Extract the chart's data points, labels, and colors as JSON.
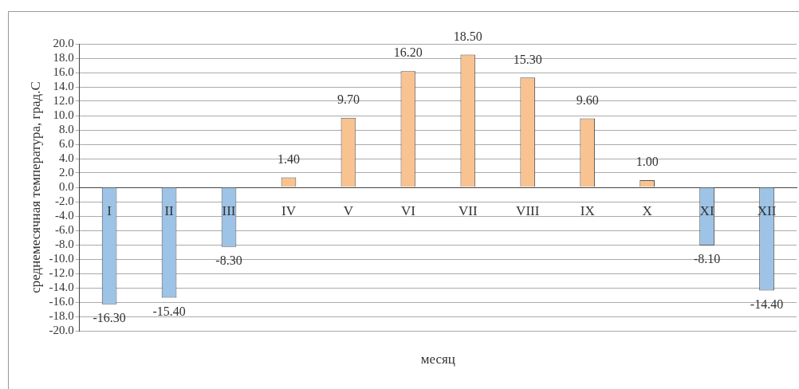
{
  "chart_data": {
    "type": "bar",
    "xlabel": "месяц",
    "ylabel": "среднемесячная температура, град.С",
    "categories": [
      "I",
      "II",
      "III",
      "IV",
      "V",
      "VI",
      "VII",
      "VIII",
      "IX",
      "X",
      "XI",
      "XII"
    ],
    "values": [
      -16.3,
      -15.4,
      -8.3,
      1.4,
      9.7,
      16.2,
      18.5,
      15.3,
      9.6,
      1.0,
      -8.1,
      -14.4
    ],
    "value_labels": [
      "-16.30",
      "-15.40",
      "-8.30",
      "1.40",
      "9.70",
      "16.20",
      "18.50",
      "15.30",
      "9.60",
      "1.00",
      "-8.10",
      "-14.40"
    ],
    "colors": [
      "#9dc3e6",
      "#9dc3e6",
      "#9dc3e6",
      "#f8c291",
      "#f8c291",
      "#f8c291",
      "#f8c291",
      "#f8c291",
      "#f8c291",
      "#f8c291",
      "#9dc3e6",
      "#9dc3e6"
    ],
    "ylim": [
      -20,
      20
    ],
    "yticks": [
      {
        "value": -20,
        "label": "-20.0"
      },
      {
        "value": -18,
        "label": "-18.0"
      },
      {
        "value": -16,
        "label": "-16.0"
      },
      {
        "value": -14,
        "label": "-14.0"
      },
      {
        "value": -12,
        "label": "-12.0"
      },
      {
        "value": -10,
        "label": "-10.0"
      },
      {
        "value": -8,
        "label": "-8.0"
      },
      {
        "value": -6,
        "label": "-6.0"
      },
      {
        "value": -4,
        "label": "-4.0"
      },
      {
        "value": -2,
        "label": "-2.0"
      },
      {
        "value": 0,
        "label": "0.0"
      },
      {
        "value": 2,
        "label": "2.0"
      },
      {
        "value": 4,
        "label": "4.0"
      },
      {
        "value": 6,
        "label": "6.0"
      },
      {
        "value": 8,
        "label": "8.0"
      },
      {
        "value": 10,
        "label": "10.0"
      },
      {
        "value": 12,
        "label": "12.0"
      },
      {
        "value": 14,
        "label": "14.0"
      },
      {
        "value": 16,
        "label": "16.0"
      },
      {
        "value": 18,
        "label": "18.0"
      },
      {
        "value": 20,
        "label": "20.0"
      }
    ],
    "grid": "y",
    "legend": false
  }
}
